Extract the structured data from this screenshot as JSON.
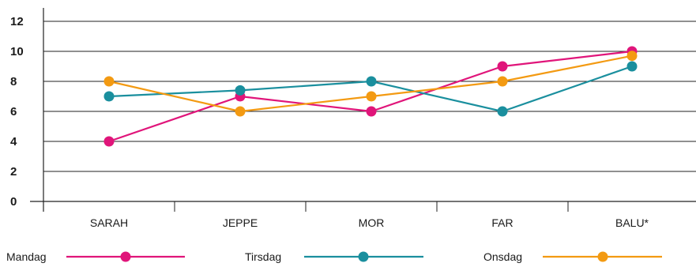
{
  "chart_data": {
    "type": "line",
    "categories": [
      "SARAH",
      "JEPPE",
      "MOR",
      "FAR",
      "BALU*"
    ],
    "ylim": [
      0,
      12
    ],
    "yticks": [
      0,
      2,
      4,
      6,
      8,
      10,
      12
    ],
    "grid": true,
    "legend_position": "bottom",
    "series": [
      {
        "name": "Mandag",
        "color": "#e0157a",
        "values": [
          4,
          7,
          6,
          9,
          10
        ]
      },
      {
        "name": "Tirsdag",
        "color": "#1a8f9e",
        "values": [
          7,
          7.4,
          8,
          6,
          9
        ]
      },
      {
        "name": "Onsdag",
        "color": "#f39a12",
        "values": [
          8,
          6,
          7,
          8,
          9.7
        ]
      }
    ]
  }
}
